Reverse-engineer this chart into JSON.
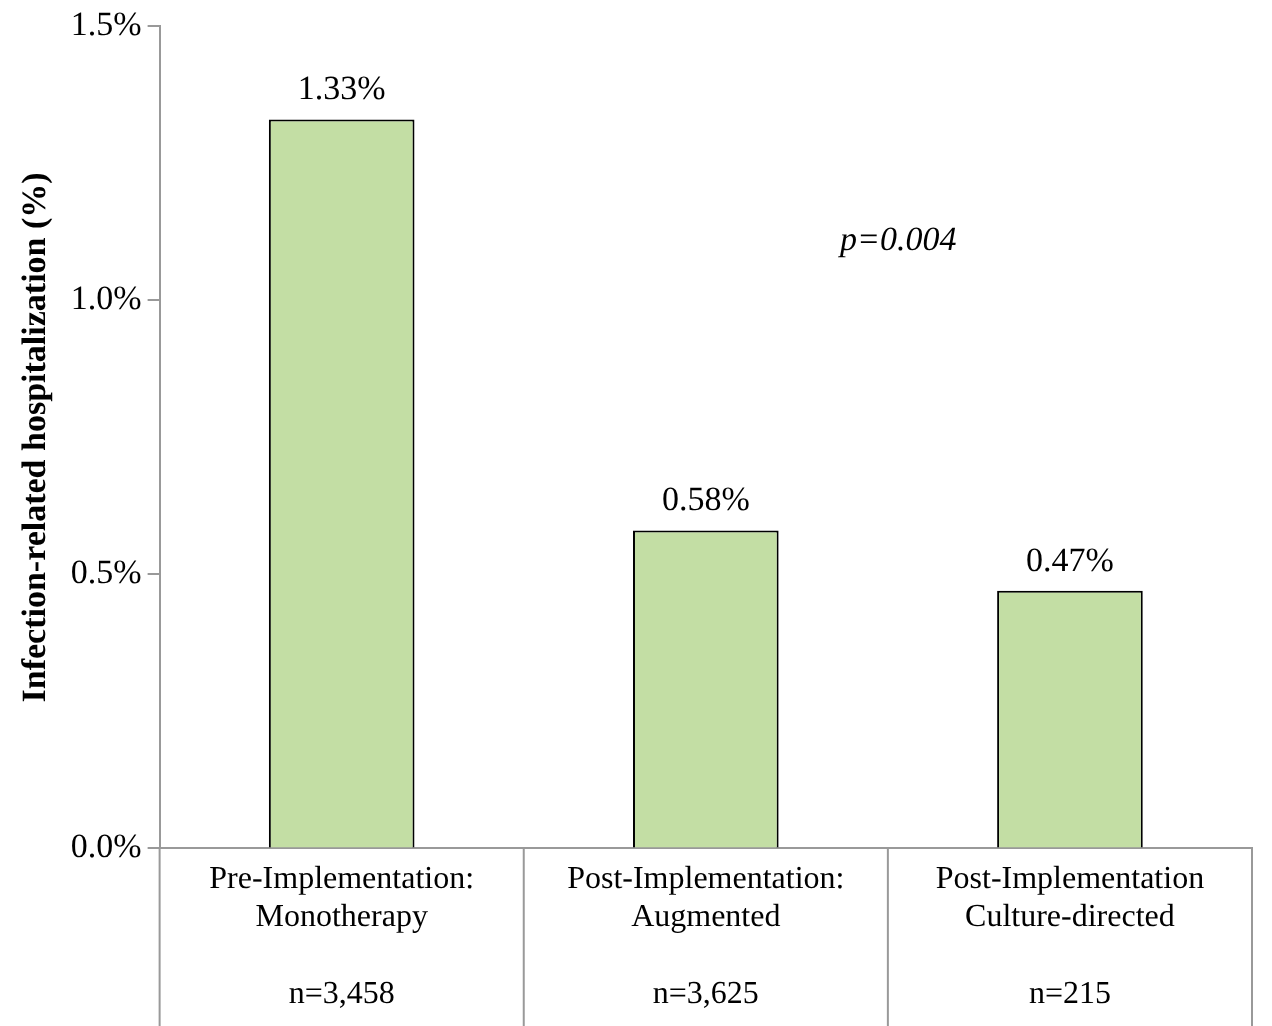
{
  "chart_data": {
    "type": "bar",
    "ylabel": "Infection-related hospitalization (%)",
    "categories": [
      "Pre-Implementation:\nMonotherapy\n\nn=3,458",
      "Post-Implementation:\nAugmented\n\nn=3,625",
      "Post-Implementation\nCulture-directed\n\nn=215"
    ],
    "values": [
      1.33,
      0.58,
      0.47
    ],
    "color": "#c3dea4",
    "value_labels": [
      "1.33%",
      "0.58%",
      "0.47%"
    ],
    "ylim": [
      0,
      1.5
    ],
    "yticks": [
      {
        "value": 0,
        "label": "0.0%"
      },
      {
        "value": 0.5,
        "label": "0.5%"
      },
      {
        "value": 1,
        "label": "1.0%"
      },
      {
        "value": 1.5,
        "label": "1.5%"
      }
    ],
    "annotations": [
      "p=0.004"
    ],
    "grid": false,
    "legend": false
  }
}
